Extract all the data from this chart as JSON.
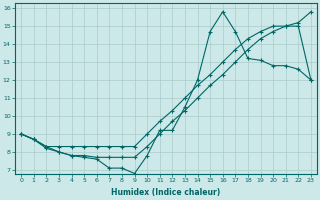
{
  "xlabel": "Humidex (Indice chaleur)",
  "bg_color": "#cce8e8",
  "grid_color": "#aacccc",
  "line_color": "#006666",
  "xlim": [
    -0.5,
    23.5
  ],
  "ylim": [
    6.8,
    16.3
  ],
  "xticks": [
    0,
    1,
    2,
    3,
    4,
    5,
    6,
    7,
    8,
    9,
    10,
    11,
    12,
    13,
    14,
    15,
    16,
    17,
    18,
    19,
    20,
    21,
    22,
    23
  ],
  "yticks": [
    7,
    8,
    9,
    10,
    11,
    12,
    13,
    14,
    15,
    16
  ],
  "series1_x": [
    0,
    1,
    2,
    3,
    4,
    5,
    6,
    7,
    8,
    9,
    10,
    11,
    12,
    13,
    14,
    15,
    16,
    17,
    18,
    19,
    20,
    21,
    22,
    23
  ],
  "series1_y": [
    9.0,
    8.7,
    8.2,
    8.0,
    7.8,
    7.7,
    7.6,
    7.1,
    7.1,
    6.8,
    7.8,
    9.2,
    9.2,
    10.5,
    12.0,
    14.7,
    15.8,
    14.7,
    13.2,
    13.1,
    12.8,
    12.8,
    12.6,
    12.0
  ],
  "series2_x": [
    0,
    1,
    2,
    3,
    4,
    5,
    6,
    7,
    8,
    9,
    10,
    11,
    12,
    13,
    14,
    15,
    16,
    17,
    18,
    19,
    20,
    21,
    22,
    23
  ],
  "series2_y": [
    9.0,
    8.7,
    8.3,
    8.3,
    8.3,
    8.3,
    8.3,
    8.3,
    8.3,
    8.3,
    9.0,
    9.7,
    10.3,
    11.0,
    11.7,
    12.3,
    13.0,
    13.7,
    14.3,
    14.7,
    15.0,
    15.0,
    15.0,
    12.0
  ],
  "series3_x": [
    0,
    1,
    2,
    3,
    4,
    5,
    6,
    7,
    8,
    9,
    10,
    11,
    12,
    13,
    14,
    15,
    16,
    17,
    18,
    19,
    20,
    21,
    22,
    23
  ],
  "series3_y": [
    9.0,
    8.7,
    8.3,
    8.0,
    7.8,
    7.8,
    7.7,
    7.7,
    7.7,
    7.7,
    8.3,
    9.0,
    9.7,
    10.3,
    11.0,
    11.7,
    12.3,
    13.0,
    13.7,
    14.3,
    14.7,
    15.0,
    15.2,
    15.8
  ]
}
